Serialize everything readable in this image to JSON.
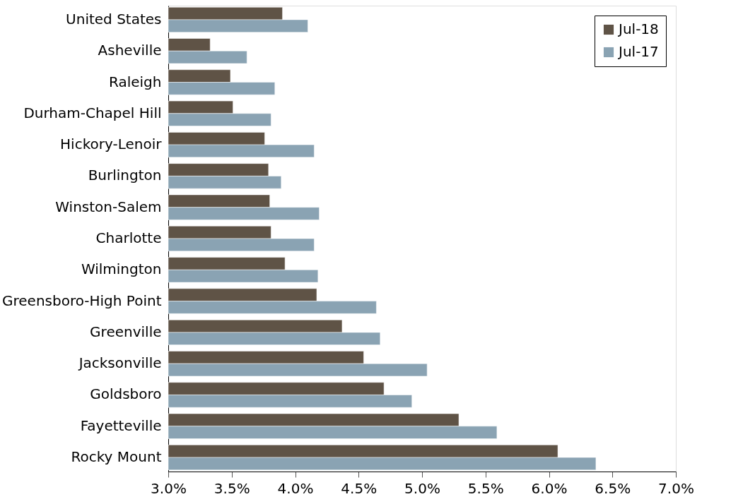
{
  "chart_data": {
    "type": "bar",
    "orientation": "horizontal",
    "categories": [
      "United States",
      "Asheville",
      "Raleigh",
      "Durham-Chapel Hill",
      "Hickory-Lenoir",
      "Burlington",
      "Winston-Salem",
      "Charlotte",
      "Wilmington",
      "Greensboro-High Point",
      "Greenville",
      "Jacksonville",
      "Goldsboro",
      "Fayetteville",
      "Rocky Mount"
    ],
    "series": [
      {
        "name": "Jul-18",
        "color": "#5f5346",
        "values": [
          3.9,
          3.33,
          3.49,
          3.51,
          3.76,
          3.79,
          3.8,
          3.81,
          3.92,
          4.17,
          4.37,
          4.54,
          4.7,
          5.29,
          6.07
        ]
      },
      {
        "name": "Jul-17",
        "color": "#8aa3b3",
        "values": [
          4.1,
          3.62,
          3.84,
          3.81,
          4.15,
          3.89,
          4.19,
          4.15,
          4.18,
          4.64,
          4.67,
          5.04,
          4.92,
          5.59,
          6.37
        ]
      }
    ],
    "xlim": [
      3.0,
      7.0
    ],
    "xticks": [
      {
        "value": 3.0,
        "label": "3.0%"
      },
      {
        "value": 3.5,
        "label": "3.5%"
      },
      {
        "value": 4.0,
        "label": "4.0%"
      },
      {
        "value": 4.5,
        "label": "4.5%"
      },
      {
        "value": 5.0,
        "label": "5.0%"
      },
      {
        "value": 5.5,
        "label": "5.5%"
      },
      {
        "value": 6.0,
        "label": "6.0%"
      },
      {
        "value": 6.5,
        "label": "6.5%"
      },
      {
        "value": 7.0,
        "label": "7.0%"
      }
    ],
    "grid": false,
    "legend": "top right"
  }
}
